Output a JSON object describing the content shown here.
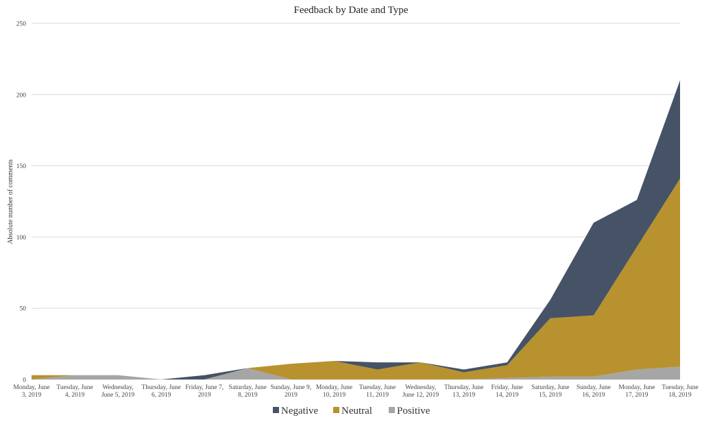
{
  "chart_data": {
    "type": "area",
    "stacked": true,
    "title": "Feedback by Date and Type",
    "xlabel": "",
    "ylabel": "Absolute number of comments",
    "ylim": [
      0,
      250
    ],
    "yticks": [
      0,
      50,
      100,
      150,
      200,
      250
    ],
    "grid": true,
    "legend_position": "bottom",
    "categories": [
      [
        "Monday, June",
        "3, 2019"
      ],
      [
        "Tuesday, June",
        "4, 2019"
      ],
      [
        "Wednesday,",
        "June 5, 2019"
      ],
      [
        "Thursday, June",
        "6, 2019"
      ],
      [
        "Friday, June 7,",
        "2019"
      ],
      [
        "Saturday, June",
        "8, 2019"
      ],
      [
        "Sunday, June 9,",
        "2019"
      ],
      [
        "Monday, June",
        "10, 2019"
      ],
      [
        "Tuesday, June",
        "11, 2019"
      ],
      [
        "Wednesday,",
        "June 12, 2019"
      ],
      [
        "Thursday, June",
        "13, 2019"
      ],
      [
        "Friday, June",
        "14, 2019"
      ],
      [
        "Saturday, June",
        "15, 2019"
      ],
      [
        "Sunday, June",
        "16, 2019"
      ],
      [
        "Monday, June",
        "17, 2019"
      ],
      [
        "Tuesday, June",
        "18, 2019"
      ]
    ],
    "series": [
      {
        "name": "Positive",
        "color": "#a6a6a6",
        "values": [
          0,
          3,
          3,
          0,
          0,
          8,
          0,
          0,
          0,
          0,
          0,
          1,
          2,
          2,
          7,
          9
        ]
      },
      {
        "name": "Neutral",
        "color": "#b8922e",
        "values": [
          3,
          0,
          0,
          0,
          0,
          0,
          11,
          13,
          7,
          12,
          5,
          9,
          41,
          43,
          86,
          132
        ]
      },
      {
        "name": "Negative",
        "color": "#465366",
        "values": [
          0,
          0,
          0,
          0,
          3,
          0,
          0,
          0,
          5,
          0,
          2,
          2,
          13,
          65,
          33,
          69
        ]
      }
    ],
    "legend_order": [
      "Negative",
      "Neutral",
      "Positive"
    ]
  }
}
